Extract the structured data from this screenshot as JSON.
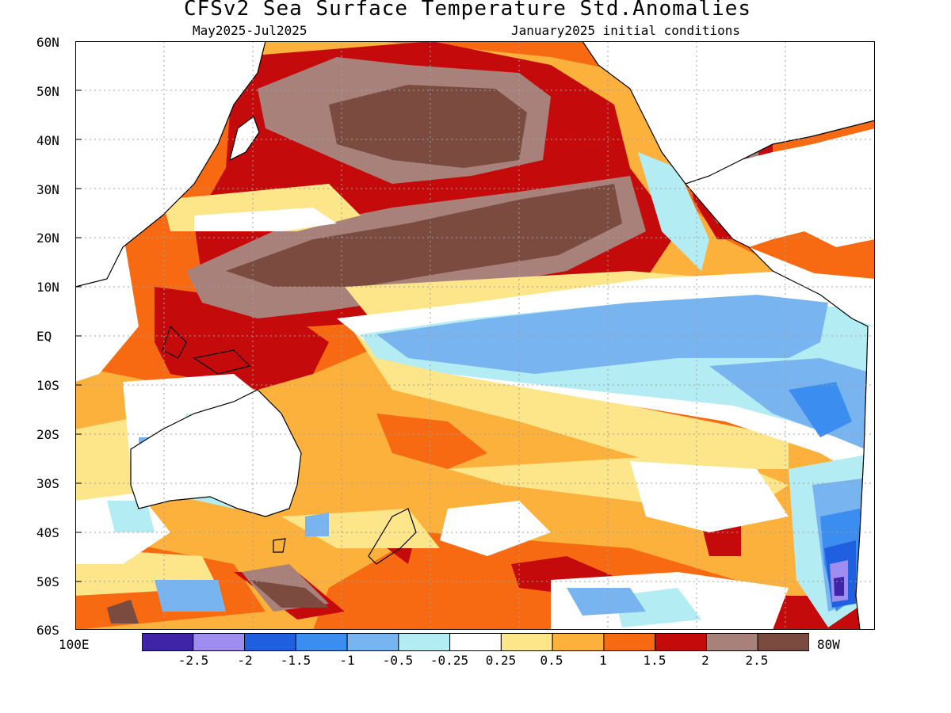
{
  "header": {
    "title": "CFSv2 Sea Surface Temperature Std.Anomalies",
    "period": "May2025-Jul2025",
    "init": "January2025 initial conditions"
  },
  "axes": {
    "lat_labels": [
      "60N",
      "50N",
      "40N",
      "30N",
      "20N",
      "10N",
      "EQ",
      "10S",
      "20S",
      "30S",
      "40S",
      "50S",
      "60S"
    ],
    "lon_left": "100E",
    "lon_right": "80W"
  },
  "colorbar": {
    "levels": [
      "-2.5",
      "-2",
      "-1.5",
      "-1",
      "-0.5",
      "-0.25",
      "0.25",
      "0.5",
      "1",
      "1.5",
      "2",
      "2.5"
    ],
    "colors": [
      "#3f24a8",
      "#a08df0",
      "#1f5fe0",
      "#3b8ef0",
      "#78b4f0",
      "#b4ecf4",
      "#ffffff",
      "#fde58a",
      "#fbb13b",
      "#f86a12",
      "#c40a0a",
      "#a8817b",
      "#7b4b3f"
    ]
  },
  "map_colors": {
    "ocean_base": "#fbb13b",
    "land": "#ffffff",
    "grid": "#a0a0a0",
    "coast": "#000000"
  }
}
